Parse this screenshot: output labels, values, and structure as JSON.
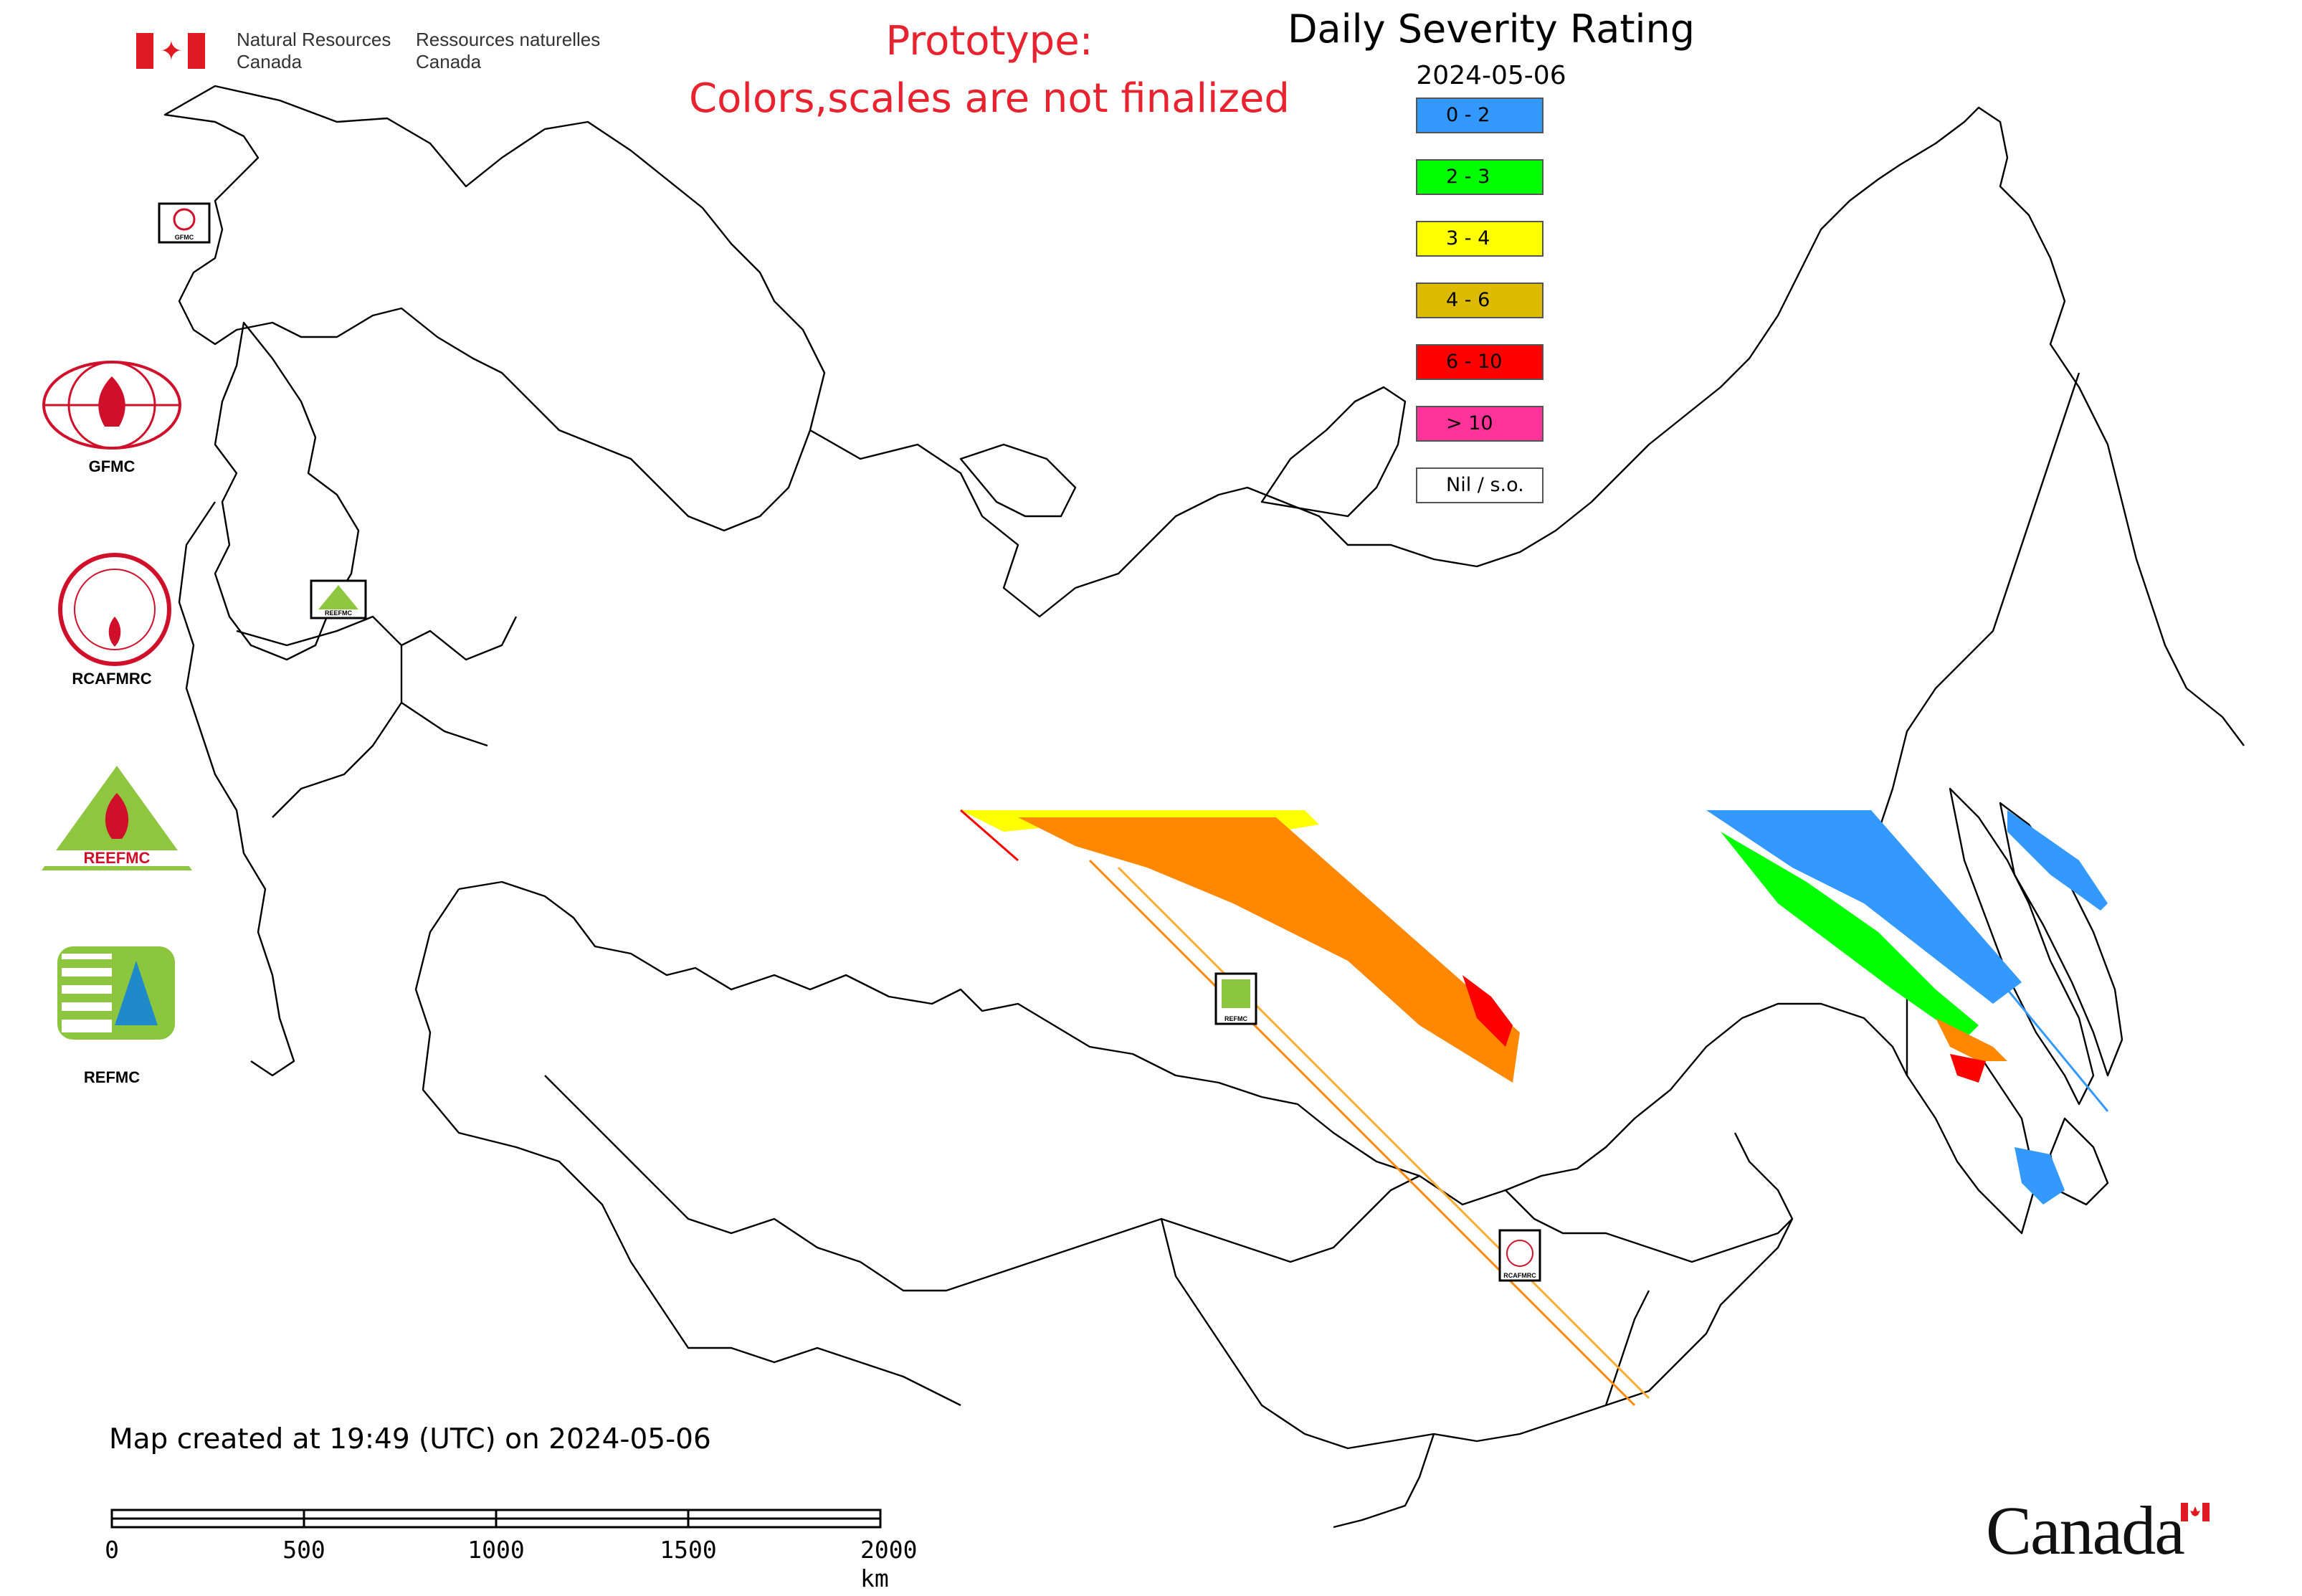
{
  "header": {
    "gov_signature_en": [
      "Natural Resources",
      "Canada"
    ],
    "gov_signature_fr": [
      "Ressources naturelles",
      "Canada"
    ],
    "prototype_lines": [
      "Prototype:",
      "Colors,scales are not finalized"
    ]
  },
  "legend": {
    "title": "Daily Severity Rating",
    "date": "2024-05-06",
    "items": [
      {
        "label": "0 - 2",
        "color": "#3399ff"
      },
      {
        "label": "2 - 3",
        "color": "#00ff00"
      },
      {
        "label": "3 - 4",
        "color": "#ffff00"
      },
      {
        "label": "4 - 6",
        "color": "#ddbb00"
      },
      {
        "label": "6 - 10",
        "color": "#ff0000"
      },
      {
        "label": "> 10",
        "color": "#ff3399"
      },
      {
        "label": "Nil / s.o.",
        "color": "#ffffff"
      }
    ]
  },
  "side_logos": [
    {
      "name": "GFMC",
      "label": "GFMC"
    },
    {
      "name": "RCAFMRC",
      "label": "RCAFMRC"
    },
    {
      "name": "REEFMC",
      "label": ""
    },
    {
      "name": "REFMC",
      "label": "REFMC"
    }
  ],
  "map_markers": [
    {
      "name": "GFMC",
      "label": "GFMC"
    },
    {
      "name": "REEFMC",
      "label": "REEFMC"
    },
    {
      "name": "REFMC",
      "label": "REFMC"
    },
    {
      "name": "RCAFMRC",
      "label": "RCAFMRC"
    }
  ],
  "footer": {
    "created": "Map created at 19:49 (UTC) on 2024-05-06",
    "scale_ticks": [
      "0",
      "500",
      "1000",
      "1500",
      "2000 km"
    ],
    "wordmark": "Canada"
  },
  "colors": {
    "accent_red": "#e8222e",
    "boundary": "#000000",
    "dsr_orange": "#ff8800"
  }
}
